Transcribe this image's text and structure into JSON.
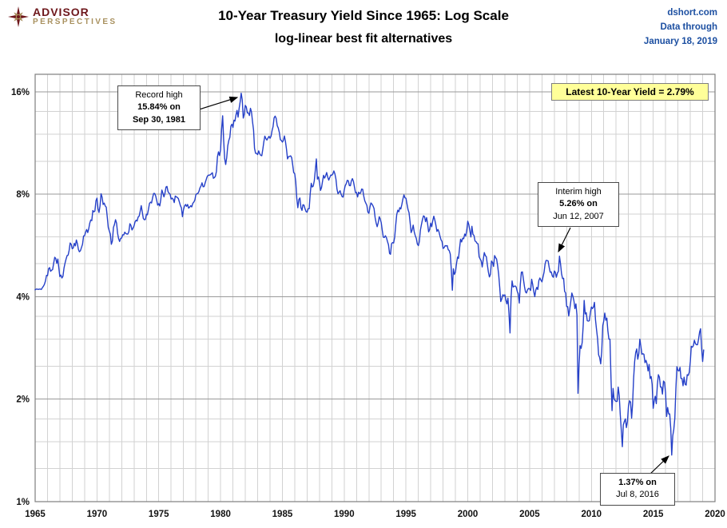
{
  "header": {
    "logo": {
      "line1": "ADVISOR",
      "line2": "PERSPECTIVES",
      "icon": "compass-rose-icon",
      "color_primary": "#6e171b",
      "color_secondary": "#a8905e"
    },
    "title_line1": "10-Year Treasury Yield Since 1965: Log Scale",
    "title_line2": "log-linear best fit alternatives",
    "source": {
      "line1": "dshort.com",
      "line2": "Data through",
      "line3": "January 18, 2019",
      "color": "#1c4fa1"
    }
  },
  "chart_data": {
    "type": "line",
    "title": "10-Year Treasury Yield Since 1965: Log Scale",
    "subtitle": "log-linear best fit alternatives",
    "y_scale": "log",
    "x_range": [
      1965,
      2020
    ],
    "y_range": [
      1,
      18
    ],
    "x_ticks": [
      1965,
      1970,
      1975,
      1980,
      1985,
      1990,
      1995,
      2000,
      2005,
      2010,
      2015,
      2020
    ],
    "y_ticks": [
      "1%",
      "2%",
      "4%",
      "8%",
      "16%"
    ],
    "y_tick_values": [
      1,
      2,
      4,
      8,
      16
    ],
    "y_minor": [
      1.25,
      1.5,
      1.75,
      2.5,
      3,
      3.5,
      5,
      6,
      7,
      10,
      12,
      14
    ],
    "grid": true,
    "line_color": "#2540c8",
    "annotations": {
      "record_high": {
        "line1": "Record high",
        "line2": "15.84% on",
        "line3": "Sep 30, 1981"
      },
      "interim_high": {
        "line1": "Interim high",
        "line2": "5.26% on",
        "line3": "Jun 12, 2007"
      },
      "record_low": {
        "line1": "1.37% on",
        "line2": "Jul 8, 2016"
      },
      "latest": {
        "label": "Latest 10-Year Yield = 2.79%",
        "bg": "#ffff99"
      }
    },
    "arrows": [
      {
        "from": [
          243,
          139
        ],
        "to": [
          297,
          122
        ]
      },
      {
        "from": [
          714,
          285
        ],
        "to": [
          699,
          315
        ]
      },
      {
        "from": [
          812,
          595
        ],
        "to": [
          837,
          571
        ]
      }
    ],
    "series": {
      "name": "10-Year Treasury Yield (%)",
      "frequency": "monthly",
      "start_year": 1965,
      "values": [
        4.19,
        4.21,
        4.21,
        4.2,
        4.21,
        4.21,
        4.2,
        4.25,
        4.29,
        4.35,
        4.45,
        4.62,
        4.61,
        4.83,
        4.87,
        4.75,
        4.78,
        4.81,
        5.02,
        5.22,
        5.18,
        5.01,
        5.16,
        4.84,
        4.58,
        4.63,
        4.54,
        4.59,
        4.85,
        5.02,
        5.16,
        5.28,
        5.3,
        5.48,
        5.75,
        5.7,
        5.53,
        5.56,
        5.74,
        5.64,
        5.87,
        5.72,
        5.5,
        5.42,
        5.46,
        5.58,
        5.7,
        6.03,
        6.04,
        6.19,
        6.3,
        6.17,
        6.32,
        6.57,
        6.72,
        6.69,
        7.16,
        7.1,
        7.14,
        7.65,
        7.79,
        7.24,
        7.07,
        7.39,
        8.02,
        7.84,
        7.46,
        7.53,
        7.39,
        7.33,
        6.84,
        6.39,
        6.24,
        6.11,
        5.7,
        5.83,
        6.39,
        6.52,
        6.73,
        6.58,
        6.14,
        5.93,
        5.81,
        5.93,
        5.95,
        6.08,
        6.07,
        6.19,
        6.13,
        6.11,
        6.11,
        6.21,
        6.55,
        6.48,
        6.28,
        6.36,
        6.46,
        6.64,
        6.71,
        6.67,
        6.85,
        6.9,
        7.13,
        7.4,
        7.09,
        6.79,
        6.73,
        6.74,
        6.99,
        6.96,
        7.21,
        7.51,
        7.58,
        7.54,
        7.81,
        8.04,
        8.04,
        7.9,
        7.68,
        7.43,
        7.5,
        7.39,
        7.73,
        8.23,
        8.06,
        7.86,
        8.06,
        8.4,
        8.43,
        8.14,
        8.05,
        8.0,
        7.74,
        7.79,
        7.73,
        7.56,
        7.9,
        7.86,
        7.83,
        7.77,
        7.59,
        7.41,
        7.29,
        6.87,
        7.21,
        7.39,
        7.46,
        7.37,
        7.46,
        7.28,
        7.33,
        7.4,
        7.34,
        7.52,
        7.58,
        7.69,
        7.96,
        8.03,
        8.04,
        8.15,
        8.35,
        8.46,
        8.64,
        8.41,
        8.42,
        8.64,
        8.81,
        9.01,
        9.1,
        9.1,
        9.12,
        9.18,
        9.25,
        8.91,
        8.95,
        9.03,
        9.33,
        10.3,
        10.65,
        10.39,
        10.8,
        12.41,
        13.6,
        11.47,
        10.18,
        9.78,
        10.25,
        11.1,
        11.51,
        11.75,
        12.68,
        12.84,
        12.57,
        13.19,
        13.12,
        13.68,
        14.1,
        13.47,
        14.28,
        14.94,
        15.84,
        15.15,
        13.39,
        13.72,
        14.59,
        14.43,
        13.86,
        13.87,
        13.62,
        14.3,
        13.95,
        13.06,
        12.34,
        10.91,
        10.55,
        10.54,
        10.46,
        10.72,
        10.51,
        10.4,
        10.38,
        10.85,
        11.38,
        11.85,
        11.65,
        11.54,
        11.69,
        11.83,
        11.67,
        11.84,
        12.32,
        12.63,
        13.41,
        13.56,
        13.36,
        12.72,
        12.52,
        12.16,
        11.57,
        11.5,
        11.38,
        11.51,
        11.86,
        11.43,
        10.85,
        10.16,
        10.31,
        10.33,
        10.37,
        10.24,
        9.78,
        9.26,
        9.19,
        8.7,
        7.78,
        7.3,
        7.71,
        7.8,
        7.3,
        7.17,
        7.45,
        7.43,
        7.25,
        7.11,
        7.08,
        7.25,
        7.25,
        8.02,
        8.61,
        8.4,
        8.45,
        8.76,
        9.42,
        10.15,
        8.86,
        8.99,
        8.67,
        8.21,
        8.37,
        8.72,
        9.09,
        8.92,
        9.06,
        9.26,
        8.98,
        8.8,
        8.96,
        9.11,
        9.09,
        9.17,
        9.36,
        9.18,
        8.86,
        8.28,
        8.02,
        8.11,
        8.19,
        8.01,
        7.87,
        7.84,
        8.21,
        8.47,
        8.59,
        8.79,
        8.76,
        8.48,
        8.47,
        8.75,
        8.89,
        8.72,
        8.39,
        8.08,
        8.09,
        7.85,
        8.11,
        8.04,
        8.07,
        8.28,
        8.27,
        7.9,
        7.65,
        7.53,
        7.42,
        7.09,
        7.03,
        7.34,
        7.54,
        7.48,
        7.39,
        7.26,
        6.84,
        6.59,
        6.42,
        6.59,
        6.87,
        6.77,
        6.6,
        6.26,
        5.98,
        5.97,
        6.04,
        5.96,
        5.81,
        5.68,
        5.36,
        5.33,
        5.72,
        5.77,
        5.75,
        5.97,
        6.48,
        6.97,
        7.18,
        7.1,
        7.3,
        7.24,
        7.46,
        7.74,
        7.96,
        7.81,
        7.78,
        7.47,
        7.2,
        7.06,
        6.63,
        6.17,
        6.28,
        6.49,
        6.2,
        6.04,
        5.93,
        5.71,
        5.65,
        5.81,
        6.27,
        6.51,
        6.74,
        6.91,
        6.87,
        6.64,
        6.83,
        6.53,
        6.2,
        6.3,
        6.58,
        6.42,
        6.69,
        6.89,
        6.71,
        6.49,
        6.22,
        6.3,
        6.21,
        6.03,
        5.88,
        5.81,
        5.54,
        5.57,
        5.65,
        5.64,
        5.65,
        5.5,
        5.46,
        5.34,
        4.81,
        4.18,
        4.83,
        4.65,
        4.72,
        5.0,
        5.23,
        5.18,
        5.54,
        5.9,
        5.79,
        5.94,
        5.92,
        6.11,
        6.03,
        6.28,
        6.66,
        6.52,
        6.26,
        5.99,
        6.44,
        6.1,
        6.05,
        5.83,
        5.8,
        5.74,
        5.72,
        5.24,
        5.16,
        5.1,
        4.89,
        5.14,
        5.39,
        5.28,
        5.24,
        4.97,
        4.73,
        4.57,
        4.65,
        5.09,
        5.04,
        4.91,
        5.28,
        5.21,
        5.16,
        4.93,
        4.65,
        4.26,
        3.87,
        3.94,
        4.05,
        4.03,
        4.05,
        3.9,
        3.81,
        3.96,
        3.57,
        3.13,
        3.98,
        4.45,
        4.27,
        4.29,
        4.3,
        4.27,
        4.15,
        4.08,
        3.83,
        4.35,
        4.72,
        4.73,
        4.5,
        4.28,
        4.13,
        4.1,
        4.19,
        4.23,
        4.22,
        4.17,
        4.5,
        4.34,
        4.14,
        4.0,
        4.18,
        4.26,
        4.2,
        4.46,
        4.54,
        4.47,
        4.42,
        4.57,
        4.72,
        4.99,
        5.11,
        5.11,
        5.09,
        4.88,
        4.72,
        4.73,
        4.6,
        4.56,
        4.76,
        4.72,
        4.56,
        4.69,
        4.75,
        5.26,
        5.0,
        4.67,
        4.52,
        4.53,
        4.15,
        4.1,
        3.74,
        3.74,
        3.51,
        3.68,
        3.88,
        4.1,
        4.01,
        3.89,
        3.69,
        3.81,
        3.53,
        2.08,
        2.52,
        2.87,
        2.82,
        2.93,
        3.29,
        3.9,
        3.56,
        3.59,
        3.4,
        3.39,
        3.4,
        3.59,
        3.73,
        3.69,
        3.73,
        3.85,
        3.42,
        3.2,
        3.01,
        2.7,
        2.65,
        2.54,
        2.76,
        3.29,
        3.39,
        3.58,
        3.41,
        3.46,
        3.17,
        3.0,
        3.0,
        2.3,
        1.85,
        2.15,
        2.01,
        1.98,
        1.97,
        1.97,
        2.17,
        2.05,
        1.8,
        1.62,
        1.45,
        1.68,
        1.72,
        1.75,
        1.65,
        1.72,
        1.91,
        1.98,
        1.96,
        1.76,
        1.93,
        2.3,
        2.58,
        2.74,
        2.81,
        2.62,
        2.72,
        3.0,
        2.86,
        2.71,
        2.72,
        2.71,
        2.56,
        2.6,
        2.54,
        2.42,
        2.53,
        2.3,
        2.33,
        2.21,
        1.88,
        1.98,
        2.04,
        1.94,
        2.2,
        2.36,
        2.32,
        2.17,
        2.17,
        2.07,
        2.26,
        2.24,
        2.09,
        1.78,
        1.89,
        1.81,
        1.81,
        1.64,
        1.37,
        1.56,
        1.63,
        1.76,
        2.14,
        2.49,
        2.43,
        2.42,
        2.48,
        2.3,
        2.3,
        2.19,
        2.32,
        2.21,
        2.2,
        2.36,
        2.35,
        2.4,
        2.58,
        2.86,
        2.84,
        2.87,
        2.98,
        2.91,
        2.89,
        2.89,
        3.0,
        3.15,
        3.22,
        2.83,
        2.58,
        2.79
      ]
    }
  }
}
